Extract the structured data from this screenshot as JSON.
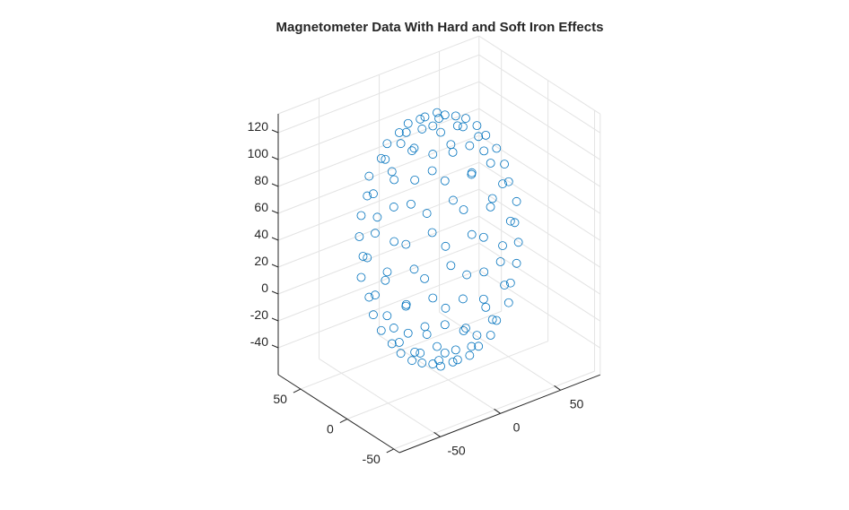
{
  "chart_data": {
    "type": "scatter3",
    "title": "Magnetometer Data With Hard and Soft Iron Effects",
    "xlabel": "",
    "ylabel": "",
    "zlabel": "",
    "xlim": [
      -84,
      83
    ],
    "ylim": [
      -56,
      74
    ],
    "zlim": [
      -60,
      134
    ],
    "xticks": [
      -50,
      0,
      50
    ],
    "yticks": [
      -50,
      0,
      50
    ],
    "zticks": [
      -40,
      -20,
      0,
      20,
      40,
      60,
      80,
      100,
      120
    ],
    "grid": true,
    "marker": "circle-open",
    "colors": {
      "marker": "#0072BD",
      "axis": "#262626",
      "grid": "#e3e3e3"
    },
    "points": [
      [
        0,
        10,
        130
      ],
      [
        0,
        10,
        -50
      ],
      [
        14,
        10,
        127
      ],
      [
        7,
        21,
        127
      ],
      [
        -7,
        21,
        127
      ],
      [
        -14,
        10,
        127
      ],
      [
        -7,
        -1,
        127
      ],
      [
        7,
        -1,
        127
      ],
      [
        14,
        10,
        -47
      ],
      [
        7,
        21,
        -47
      ],
      [
        -7,
        21,
        -47
      ],
      [
        -14,
        10,
        -47
      ],
      [
        -7,
        -1,
        -47
      ],
      [
        7,
        -1,
        -47
      ],
      [
        27,
        16,
        118
      ],
      [
        19,
        28,
        118
      ],
      [
        7,
        34,
        118
      ],
      [
        -7,
        34,
        118
      ],
      [
        -19,
        28,
        118
      ],
      [
        -27,
        16,
        118
      ],
      [
        -27,
        4,
        118
      ],
      [
        -19,
        -8,
        118
      ],
      [
        -7,
        -14,
        118
      ],
      [
        7,
        -14,
        118
      ],
      [
        19,
        -8,
        118
      ],
      [
        27,
        4,
        118
      ],
      [
        27,
        16,
        -38
      ],
      [
        19,
        28,
        -38
      ],
      [
        7,
        34,
        -38
      ],
      [
        -7,
        34,
        -38
      ],
      [
        -19,
        28,
        -38
      ],
      [
        -27,
        16,
        -38
      ],
      [
        -27,
        4,
        -38
      ],
      [
        -19,
        -8,
        -38
      ],
      [
        -7,
        -14,
        -38
      ],
      [
        7,
        -14,
        -38
      ],
      [
        19,
        -8,
        -38
      ],
      [
        27,
        4,
        -38
      ],
      [
        39,
        10,
        104
      ],
      [
        34,
        28,
        104
      ],
      [
        19,
        41,
        104
      ],
      [
        0,
        45,
        104
      ],
      [
        -19,
        41,
        104
      ],
      [
        -34,
        28,
        104
      ],
      [
        -39,
        10,
        104
      ],
      [
        -34,
        -8,
        104
      ],
      [
        -19,
        -21,
        104
      ],
      [
        0,
        -25,
        104
      ],
      [
        19,
        -21,
        104
      ],
      [
        34,
        -8,
        104
      ],
      [
        39,
        10,
        -24
      ],
      [
        34,
        28,
        -24
      ],
      [
        19,
        41,
        -24
      ],
      [
        0,
        45,
        -24
      ],
      [
        -19,
        41,
        -24
      ],
      [
        -34,
        28,
        -24
      ],
      [
        -39,
        10,
        -24
      ],
      [
        -34,
        -8,
        -24
      ],
      [
        -19,
        -21,
        -24
      ],
      [
        0,
        -25,
        -24
      ],
      [
        19,
        -21,
        -24
      ],
      [
        34,
        -8,
        -24
      ],
      [
        46,
        21,
        85
      ],
      [
        34,
        41,
        85
      ],
      [
        12,
        52,
        85
      ],
      [
        -12,
        52,
        85
      ],
      [
        -34,
        41,
        85
      ],
      [
        -46,
        21,
        85
      ],
      [
        -46,
        -1,
        85
      ],
      [
        -34,
        -21,
        85
      ],
      [
        -12,
        -32,
        85
      ],
      [
        12,
        -32,
        85
      ],
      [
        34,
        -21,
        85
      ],
      [
        46,
        -1,
        85
      ],
      [
        46,
        21,
        -5
      ],
      [
        34,
        41,
        -5
      ],
      [
        12,
        52,
        -5
      ],
      [
        -12,
        52,
        -5
      ],
      [
        -34,
        41,
        -5
      ],
      [
        -46,
        21,
        -5
      ],
      [
        -46,
        -1,
        -5
      ],
      [
        -34,
        -21,
        -5
      ],
      [
        -12,
        -32,
        -5
      ],
      [
        12,
        -32,
        -5
      ],
      [
        34,
        -21,
        -5
      ],
      [
        46,
        -1,
        -5
      ],
      [
        53,
        10,
        63
      ],
      [
        46,
        34,
        63
      ],
      [
        27,
        52,
        63
      ],
      [
        0,
        58,
        63
      ],
      [
        -27,
        52,
        63
      ],
      [
        -46,
        34,
        63
      ],
      [
        -53,
        10,
        63
      ],
      [
        -46,
        -14,
        63
      ],
      [
        -27,
        -32,
        63
      ],
      [
        0,
        -38,
        63
      ],
      [
        27,
        -32,
        63
      ],
      [
        46,
        -14,
        63
      ],
      [
        53,
        10,
        17
      ],
      [
        46,
        34,
        17
      ],
      [
        27,
        52,
        17
      ],
      [
        0,
        58,
        17
      ],
      [
        -27,
        52,
        17
      ],
      [
        -46,
        34,
        17
      ],
      [
        -53,
        10,
        17
      ],
      [
        -46,
        -14,
        17
      ],
      [
        -27,
        -32,
        17
      ],
      [
        0,
        -38,
        17
      ],
      [
        27,
        -32,
        17
      ],
      [
        46,
        -14,
        17
      ],
      [
        53,
        23,
        40
      ],
      [
        39,
        45,
        40
      ],
      [
        14,
        58,
        40
      ],
      [
        -14,
        58,
        40
      ],
      [
        -39,
        45,
        40
      ],
      [
        -53,
        23,
        40
      ],
      [
        -53,
        -3,
        40
      ],
      [
        -39,
        -25,
        40
      ],
      [
        -14,
        -38,
        40
      ],
      [
        14,
        -38,
        40
      ],
      [
        39,
        -25,
        40
      ],
      [
        53,
        -3,
        40
      ]
    ]
  }
}
